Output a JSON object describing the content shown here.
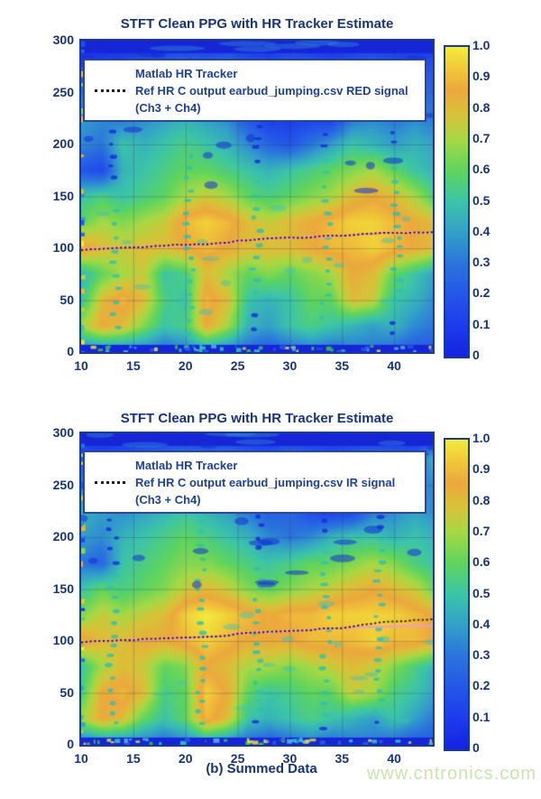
{
  "page": {
    "caption": "(b) Summed Data",
    "watermark": "www.cntronics.com",
    "watermark_color": "#c9e5ae",
    "title_color": "#16337a",
    "legend_text_color": "#1e4097"
  },
  "colors": {
    "pink_line": "#f29eb4",
    "ref_line": "#20150c",
    "frame": "#1b3b8c",
    "band_blue": "#1626d6",
    "colormap": [
      {
        "t": 0.0,
        "c": "#1522e0"
      },
      {
        "t": 0.1,
        "c": "#1c3cec"
      },
      {
        "t": 0.2,
        "c": "#2456e8"
      },
      {
        "t": 0.3,
        "c": "#2b74dc"
      },
      {
        "t": 0.4,
        "c": "#33a0c8"
      },
      {
        "t": 0.5,
        "c": "#3cc4a8"
      },
      {
        "t": 0.6,
        "c": "#5ed45e"
      },
      {
        "t": 0.7,
        "c": "#a6d844"
      },
      {
        "t": 0.78,
        "c": "#d8c238"
      },
      {
        "t": 0.86,
        "c": "#eca83c"
      },
      {
        "t": 0.93,
        "c": "#f0c838"
      },
      {
        "t": 1.0,
        "c": "#f2ec3e"
      }
    ]
  },
  "chart_data": [
    {
      "type": "heatmap",
      "title": "STFT Clean PPG with HR Tracker Estimate",
      "legend_lines": [
        "Matlab HR Tracker",
        "Ref HR C output earbud_jumping.csv RED signal",
        "(Ch3 + Ch4)"
      ],
      "xlabel": "",
      "ylabel": "",
      "xlim": [
        10,
        43.7
      ],
      "ylim": [
        0,
        300
      ],
      "x_ticks": [
        10,
        15,
        20,
        25,
        30,
        35,
        40
      ],
      "y_ticks": [
        0,
        50,
        100,
        150,
        200,
        250,
        300
      ],
      "colorbar_ticks": [
        "1.0",
        "0.9",
        "0.8",
        "0.7",
        "0.6",
        "0.5",
        "0.4",
        "0.3",
        "0.2",
        "0.1",
        "0"
      ],
      "colorbar_range": [
        0,
        1
      ],
      "grid_on": true,
      "top_band_above": 288,
      "bottom_band_below": 7,
      "seed": 42,
      "speckle_columns": [
        13.2,
        20.4,
        26.8,
        33.5,
        40.2
      ],
      "grid": {
        "x_nodes": [
          10,
          12,
          14,
          16,
          18,
          20,
          22,
          24,
          26,
          28,
          30,
          32,
          34,
          36,
          38,
          40,
          42,
          44
        ],
        "y_nodes": [
          0,
          25,
          50,
          75,
          100,
          125,
          150,
          175,
          200,
          225,
          250,
          275,
          300
        ],
        "values": [
          [
            0.25,
            0.3,
            0.3,
            0.3,
            0.25,
            0.3,
            0.35,
            0.3,
            0.25,
            0.2,
            0.25,
            0.3,
            0.25,
            0.3,
            0.3,
            0.25,
            0.2,
            0.2
          ],
          [
            0.7,
            0.85,
            0.8,
            0.65,
            0.5,
            0.55,
            0.85,
            0.7,
            0.45,
            0.4,
            0.5,
            0.55,
            0.5,
            0.45,
            0.4,
            0.45,
            0.35,
            0.3
          ],
          [
            0.5,
            0.8,
            0.9,
            0.8,
            0.55,
            0.5,
            0.9,
            0.8,
            0.5,
            0.45,
            0.5,
            0.6,
            0.6,
            0.8,
            0.75,
            0.5,
            0.45,
            0.35
          ],
          [
            0.45,
            0.6,
            0.7,
            0.75,
            0.5,
            0.55,
            0.8,
            0.7,
            0.6,
            0.65,
            0.6,
            0.65,
            0.7,
            0.85,
            0.8,
            0.6,
            0.5,
            0.4
          ],
          [
            0.9,
            0.8,
            0.75,
            0.8,
            0.8,
            0.85,
            0.9,
            0.85,
            0.8,
            0.8,
            0.8,
            0.85,
            0.9,
            0.9,
            0.95,
            0.9,
            0.85,
            0.8
          ],
          [
            0.6,
            0.7,
            0.65,
            0.7,
            0.75,
            0.9,
            0.95,
            0.9,
            0.8,
            0.75,
            0.8,
            0.85,
            0.9,
            0.95,
            0.95,
            0.9,
            0.85,
            0.8
          ],
          [
            0.5,
            0.55,
            0.5,
            0.55,
            0.6,
            0.7,
            0.75,
            0.7,
            0.6,
            0.55,
            0.6,
            0.65,
            0.7,
            0.8,
            0.85,
            0.8,
            0.7,
            0.55
          ],
          [
            0.2,
            0.15,
            0.45,
            0.5,
            0.55,
            0.6,
            0.6,
            0.55,
            0.5,
            0.45,
            0.5,
            0.55,
            0.6,
            0.65,
            0.7,
            0.6,
            0.5,
            0.45
          ],
          [
            0.35,
            0.3,
            0.5,
            0.45,
            0.5,
            0.55,
            0.5,
            0.45,
            0.35,
            0.25,
            0.2,
            0.3,
            0.4,
            0.5,
            0.45,
            0.4,
            0.45,
            0.4
          ],
          [
            0.4,
            0.35,
            0.3,
            0.35,
            0.4,
            0.45,
            0.4,
            0.35,
            0.2,
            0.1,
            0.1,
            0.12,
            0.1,
            0.3,
            0.35,
            0.3,
            0.35,
            0.3
          ],
          [
            0.3,
            0.25,
            0.2,
            0.3,
            0.35,
            0.3,
            0.35,
            0.3,
            0.25,
            0.15,
            0.2,
            0.25,
            0.2,
            0.25,
            0.3,
            0.25,
            0.3,
            0.25
          ],
          [
            0.12,
            0.1,
            0.15,
            0.2,
            0.25,
            0.3,
            0.25,
            0.3,
            0.2,
            0.15,
            0.25,
            0.2,
            0.15,
            0.2,
            0.25,
            0.2,
            0.15,
            0.2
          ],
          [
            0.05,
            0.05,
            0.05,
            0.05,
            0.05,
            0.05,
            0.05,
            0.05,
            0.05,
            0.05,
            0.05,
            0.05,
            0.05,
            0.05,
            0.05,
            0.05,
            0.05,
            0.05
          ]
        ]
      },
      "series": [
        {
          "name": "Matlab HR Tracker",
          "style": "solid",
          "x": [
            10,
            11,
            12,
            13,
            14,
            15,
            16,
            17,
            18,
            19,
            20,
            21,
            22,
            23,
            24,
            25,
            26,
            27,
            28,
            29,
            30,
            31,
            32,
            33,
            34,
            35,
            36,
            37,
            38,
            39,
            40,
            41,
            42,
            43,
            43.7
          ],
          "y": [
            98.5,
            99.5,
            100,
            100.5,
            101,
            101,
            101.5,
            102,
            102.5,
            103,
            103,
            103.5,
            104,
            104.5,
            105.5,
            107,
            108,
            108.5,
            109,
            109.5,
            110,
            110.5,
            111,
            111.5,
            112,
            112.5,
            113,
            113.5,
            114,
            114.5,
            115,
            115,
            115.5,
            115.5,
            116
          ]
        },
        {
          "name": "Ref HR C output earbud_jumping.csv RED signal (Ch3 + Ch4)",
          "style": "dotted",
          "x": [
            10,
            11,
            12,
            13,
            14,
            15,
            16,
            17,
            18,
            19,
            20,
            21,
            22,
            23,
            24,
            25,
            26,
            27,
            28,
            29,
            30,
            31,
            32,
            33,
            34,
            35,
            36,
            37,
            38,
            39,
            40,
            41,
            42,
            43,
            43.7
          ],
          "y": [
            98.5,
            99.5,
            100,
            100.5,
            101,
            101,
            101.5,
            102,
            102.5,
            103,
            103,
            103.5,
            104,
            104.5,
            105.5,
            107,
            108,
            108.5,
            109,
            109.5,
            110,
            110.5,
            111,
            111.5,
            112,
            112.5,
            113,
            113.5,
            114,
            114.5,
            115,
            115,
            115.5,
            115.5,
            116
          ]
        }
      ]
    },
    {
      "type": "heatmap",
      "title": "STFT Clean PPG with HR Tracker Estimate",
      "legend_lines": [
        "Matlab HR Tracker",
        "Ref HR C output earbud_jumping.csv IR signal",
        "(Ch3 + Ch4)"
      ],
      "xlabel": "",
      "ylabel": "",
      "xlim": [
        10,
        43.7
      ],
      "ylim": [
        0,
        300
      ],
      "x_ticks": [
        10,
        15,
        20,
        25,
        30,
        35,
        40
      ],
      "y_ticks": [
        0,
        50,
        100,
        150,
        200,
        250,
        300
      ],
      "colorbar_ticks": [
        "1.0",
        "0.9",
        "0.8",
        "0.7",
        "0.6",
        "0.5",
        "0.4",
        "0.3",
        "0.2",
        "0.1",
        "0"
      ],
      "colorbar_range": [
        0,
        1
      ],
      "grid_on": true,
      "top_band_above": 288,
      "bottom_band_below": 7,
      "seed": 77,
      "speckle_columns": [
        13.0,
        21.5,
        27.0,
        33.5,
        38.5
      ],
      "grid": {
        "x_nodes": [
          10,
          12,
          14,
          16,
          18,
          20,
          22,
          24,
          26,
          28,
          30,
          32,
          34,
          36,
          38,
          40,
          42,
          44
        ],
        "y_nodes": [
          0,
          25,
          50,
          75,
          100,
          125,
          150,
          175,
          200,
          225,
          250,
          275,
          300
        ],
        "values": [
          [
            0.25,
            0.3,
            0.3,
            0.3,
            0.25,
            0.3,
            0.35,
            0.3,
            0.25,
            0.2,
            0.25,
            0.3,
            0.25,
            0.3,
            0.3,
            0.25,
            0.2,
            0.2
          ],
          [
            0.7,
            0.85,
            0.8,
            0.6,
            0.5,
            0.6,
            0.9,
            0.8,
            0.5,
            0.45,
            0.5,
            0.55,
            0.5,
            0.45,
            0.4,
            0.5,
            0.4,
            0.3
          ],
          [
            0.55,
            0.85,
            0.9,
            0.8,
            0.55,
            0.6,
            0.95,
            0.85,
            0.6,
            0.5,
            0.55,
            0.6,
            0.6,
            0.75,
            0.7,
            0.55,
            0.5,
            0.4
          ],
          [
            0.5,
            0.7,
            0.8,
            0.75,
            0.6,
            0.65,
            0.85,
            0.8,
            0.7,
            0.7,
            0.65,
            0.7,
            0.75,
            0.8,
            0.75,
            0.65,
            0.55,
            0.45
          ],
          [
            0.9,
            0.8,
            0.8,
            0.85,
            0.85,
            0.9,
            0.95,
            0.9,
            0.85,
            0.85,
            0.85,
            0.9,
            0.9,
            0.9,
            0.95,
            0.9,
            0.9,
            0.85
          ],
          [
            0.65,
            0.75,
            0.7,
            0.75,
            0.8,
            0.95,
            1.0,
            0.95,
            0.9,
            0.85,
            0.9,
            0.9,
            0.95,
            0.95,
            0.95,
            0.95,
            0.9,
            0.85
          ],
          [
            0.5,
            0.6,
            0.55,
            0.6,
            0.65,
            0.75,
            0.8,
            0.75,
            0.65,
            0.6,
            0.65,
            0.7,
            0.75,
            0.8,
            0.85,
            0.8,
            0.75,
            0.6
          ],
          [
            0.3,
            0.25,
            0.5,
            0.55,
            0.6,
            0.65,
            0.65,
            0.6,
            0.55,
            0.5,
            0.55,
            0.6,
            0.6,
            0.65,
            0.7,
            0.65,
            0.55,
            0.5
          ],
          [
            0.4,
            0.35,
            0.45,
            0.5,
            0.55,
            0.6,
            0.55,
            0.5,
            0.45,
            0.35,
            0.3,
            0.35,
            0.45,
            0.5,
            0.5,
            0.45,
            0.5,
            0.45
          ],
          [
            0.45,
            0.4,
            0.35,
            0.4,
            0.45,
            0.5,
            0.45,
            0.4,
            0.3,
            0.22,
            0.25,
            0.15,
            0.1,
            0.12,
            0.3,
            0.35,
            0.4,
            0.35
          ],
          [
            0.35,
            0.3,
            0.25,
            0.35,
            0.4,
            0.35,
            0.4,
            0.35,
            0.3,
            0.22,
            0.18,
            0.12,
            0.1,
            0.15,
            0.3,
            0.3,
            0.35,
            0.35
          ],
          [
            0.2,
            0.15,
            0.2,
            0.25,
            0.3,
            0.35,
            0.3,
            0.35,
            0.25,
            0.2,
            0.3,
            0.25,
            0.2,
            0.25,
            0.3,
            0.25,
            0.2,
            0.5
          ],
          [
            0.05,
            0.05,
            0.05,
            0.05,
            0.05,
            0.05,
            0.05,
            0.05,
            0.05,
            0.05,
            0.05,
            0.05,
            0.05,
            0.05,
            0.05,
            0.05,
            0.05,
            0.05
          ]
        ]
      },
      "series": [
        {
          "name": "Matlab HR Tracker",
          "style": "solid",
          "x": [
            10,
            11,
            12,
            13,
            14,
            15,
            16,
            17,
            18,
            19,
            20,
            21,
            22,
            23,
            24,
            25,
            26,
            27,
            28,
            29,
            30,
            31,
            32,
            33,
            34,
            35,
            36,
            37,
            38,
            39,
            40,
            41,
            42,
            43,
            43.7
          ],
          "y": [
            98.5,
            99.5,
            100,
            100.5,
            101,
            101,
            101.5,
            102,
            102.5,
            103,
            103,
            103.5,
            104,
            104.5,
            105.5,
            107,
            108,
            108.5,
            109,
            109.5,
            110,
            110.5,
            111,
            111.5,
            112,
            112.5,
            113,
            113.5,
            114,
            114,
            114.5,
            114.5,
            115,
            115,
            115
          ]
        },
        {
          "name": "Ref HR C output earbud_jumping.csv IR signal (Ch3 + Ch4)",
          "style": "dotted",
          "x": [
            10,
            11,
            12,
            13,
            14,
            15,
            16,
            17,
            18,
            19,
            20,
            21,
            22,
            23,
            24,
            25,
            26,
            27,
            28,
            29,
            30,
            31,
            32,
            33,
            34,
            35,
            36,
            37,
            38,
            39,
            40,
            41,
            42,
            43,
            43.7
          ],
          "y": [
            98.5,
            99.5,
            100,
            100.5,
            101,
            101,
            101.5,
            102,
            102.5,
            103,
            103,
            103.5,
            104,
            104.5,
            105.5,
            107,
            108,
            108.5,
            109,
            109.5,
            110,
            110.5,
            111,
            111.5,
            112,
            112.5,
            114,
            115.5,
            117,
            118,
            118.5,
            119.5,
            120,
            120.5,
            120.5
          ]
        }
      ]
    }
  ]
}
